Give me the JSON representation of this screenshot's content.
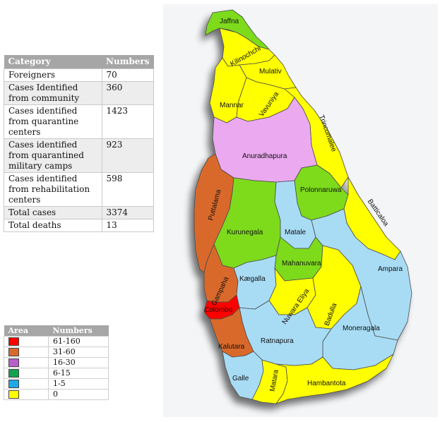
{
  "table": {
    "header": {
      "category": "Category",
      "numbers": "Numbers"
    },
    "rows": [
      {
        "category": "Foreigners",
        "value": "70"
      },
      {
        "category": "Cases Identified from community",
        "value": "360"
      },
      {
        "category": "Cases identified from quarantine centers",
        "value": "1423"
      },
      {
        "category": "Cases identified from quarantined military camps",
        "value": "923"
      },
      {
        "category": "Cases identified from rehabilitation centers",
        "value": "598"
      },
      {
        "category": "Total cases",
        "value": "3374"
      },
      {
        "category": "Total deaths",
        "value": "13"
      }
    ]
  },
  "legend": {
    "header": {
      "area": "Area",
      "numbers": "Numbers"
    },
    "items": [
      {
        "range": "61-160",
        "color": "#ff0000"
      },
      {
        "range": "31-60",
        "color": "#d9692b"
      },
      {
        "range": "16-30",
        "color": "#b85fc9"
      },
      {
        "range": "6-15",
        "color": "#13a24e"
      },
      {
        "range": "1-5",
        "color": "#1fa8e8"
      },
      {
        "range": "0",
        "color": "#ffff00"
      }
    ]
  },
  "map": {
    "fill_colors": {
      "red": "#ff0000",
      "orange": "#d9692b",
      "violet": "#eba9f0",
      "green": "#7ddb1f",
      "blue": "#a8dcf5",
      "yellow": "#ffff00"
    },
    "districts": [
      {
        "name": "Jaffna",
        "category": "6-15"
      },
      {
        "name": "Kilinochchi",
        "category": "0"
      },
      {
        "name": "Mulativ",
        "category": "0"
      },
      {
        "name": "Mannar",
        "category": "0"
      },
      {
        "name": "Vavuniya",
        "category": "0"
      },
      {
        "name": "Trincomalee",
        "category": "0"
      },
      {
        "name": "Anuradhapura",
        "category": "16-30"
      },
      {
        "name": "Puttalama",
        "category": "31-60"
      },
      {
        "name": "Polonnaruwa",
        "category": "6-15"
      },
      {
        "name": "Batticaloa",
        "category": "0"
      },
      {
        "name": "Kurunegala",
        "category": "6-15"
      },
      {
        "name": "Matale",
        "category": "1-5"
      },
      {
        "name": "Mahanuvara",
        "category": "6-15"
      },
      {
        "name": "Ampara",
        "category": "1-5"
      },
      {
        "name": "Gampaha",
        "category": "31-60"
      },
      {
        "name": "Kægalla",
        "category": "1-5"
      },
      {
        "name": "Nuwara Eliya",
        "category": "0"
      },
      {
        "name": "Badulla",
        "category": "0"
      },
      {
        "name": "Colombo",
        "category": "61-160"
      },
      {
        "name": "Moneragala",
        "category": "1-5"
      },
      {
        "name": "Ratnapura",
        "category": "1-5"
      },
      {
        "name": "Kalutara",
        "category": "31-60"
      },
      {
        "name": "Galle",
        "category": "1-5"
      },
      {
        "name": "Matara",
        "category": "0"
      },
      {
        "name": "Hambantota",
        "category": "0"
      }
    ]
  }
}
